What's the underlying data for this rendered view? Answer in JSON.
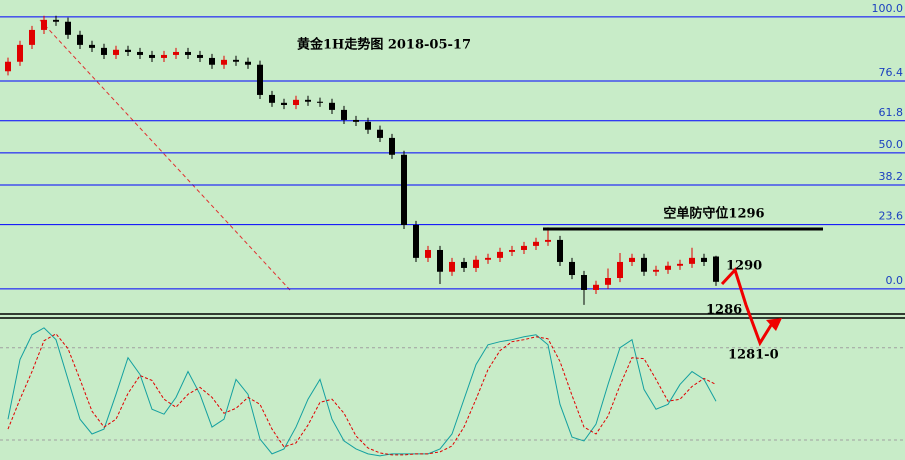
{
  "chart_data": [
    {
      "type": "candlestick",
      "title": "黄金1H走势图 2018-05-17",
      "ylim": [
        -8.5,
        106.2
      ],
      "yticks": [
        {
          "value": 100,
          "label": "100.0"
        },
        76.4,
        61.8,
        {
          "value": 50,
          "label": "50.0"
        },
        38.2,
        23.6,
        {
          "value": 0,
          "label": "0.0"
        }
      ],
      "grid": true,
      "grid_color": "#0000ff",
      "up_color": "#e00000",
      "down_color": "#000000",
      "open": [
        80.0,
        83.5,
        89.7,
        95.2,
        98.9,
        98.2,
        93.4,
        89.7,
        88.6,
        86.0,
        87.9,
        87.1,
        86.0,
        84.9,
        86.0,
        87.1,
        86.0,
        84.9,
        82.4,
        84.2,
        83.5,
        82.4,
        71.3,
        68.4,
        67.6,
        69.5,
        68.8,
        68.4,
        65.8,
        62.1,
        61.4,
        58.5,
        55.5,
        49.3,
        23.5,
        11.4,
        14.3,
        6.3,
        9.9,
        7.7,
        10.7,
        11.4,
        13.6,
        14.3,
        15.8,
        17.3,
        18.0,
        9.9,
        5.1,
        -0.4,
        1.5,
        4.0,
        9.9,
        11.4,
        6.3,
        7.0,
        8.5,
        9.2,
        11.4,
        11.9
      ],
      "high": [
        85.0,
        91.2,
        96.7,
        100.4,
        100.4,
        99.7,
        94.9,
        91.2,
        90.1,
        89.4,
        89.4,
        88.6,
        87.5,
        87.5,
        88.6,
        88.6,
        87.5,
        86.4,
        85.7,
        85.7,
        85.0,
        83.9,
        72.8,
        69.9,
        71.0,
        71.0,
        70.3,
        69.9,
        67.3,
        63.6,
        62.9,
        60.0,
        57.0,
        50.8,
        25.0,
        15.8,
        15.8,
        11.4,
        11.4,
        12.2,
        12.9,
        15.1,
        15.8,
        17.3,
        18.8,
        22.6,
        19.5,
        11.4,
        6.6,
        3.0,
        7.5,
        13.2,
        12.9,
        12.9,
        8.5,
        10.0,
        10.7,
        15.1,
        12.9,
        12.2
      ],
      "low": [
        78.5,
        82.0,
        88.2,
        93.7,
        96.7,
        91.9,
        88.2,
        87.1,
        84.5,
        84.5,
        85.6,
        84.5,
        83.4,
        83.4,
        84.5,
        84.5,
        83.4,
        80.9,
        80.9,
        82.0,
        80.9,
        69.8,
        66.9,
        66.1,
        66.1,
        67.3,
        66.9,
        64.3,
        60.6,
        59.9,
        57.0,
        54.0,
        47.8,
        22.0,
        9.9,
        9.9,
        1.8,
        4.8,
        6.2,
        6.2,
        9.2,
        9.9,
        12.1,
        12.8,
        14.3,
        15.8,
        8.4,
        3.6,
        -5.9,
        -1.9,
        0.0,
        2.5,
        8.4,
        4.8,
        4.8,
        5.5,
        7.0,
        7.7,
        8.4,
        1.1
      ],
      "close": [
        83.5,
        89.7,
        95.2,
        98.9,
        98.2,
        93.4,
        89.7,
        88.6,
        86.0,
        87.9,
        87.1,
        86.0,
        84.9,
        86.0,
        87.1,
        86.0,
        84.9,
        82.4,
        84.2,
        83.5,
        82.4,
        71.3,
        68.4,
        67.6,
        69.5,
        68.8,
        68.4,
        65.8,
        62.1,
        61.4,
        58.5,
        55.5,
        49.3,
        23.5,
        11.4,
        14.3,
        6.3,
        9.9,
        7.7,
        10.7,
        11.4,
        13.6,
        14.3,
        15.8,
        17.3,
        18.0,
        9.9,
        5.1,
        -0.4,
        1.5,
        4.0,
        9.9,
        11.4,
        6.3,
        7.0,
        8.5,
        9.2,
        11.4,
        9.9,
        2.6
      ],
      "annotations": [
        "空单防守位1296",
        "1290",
        "1286",
        "1281-0"
      ]
    },
    {
      "type": "line",
      "ylim": [
        7,
        98
      ],
      "levels": [
        20,
        80
      ],
      "series": [
        {
          "color": "#14a0a0",
          "dashed": false,
          "values": [
            33.5,
            72.3,
            88.4,
            92.9,
            85.2,
            59.4,
            33.5,
            23.9,
            27.1,
            49.7,
            73.5,
            62.6,
            40.0,
            36.8,
            47.7,
            64.5,
            49.7,
            28.4,
            33.5,
            59.4,
            49.7,
            20.6,
            11.0,
            14.2,
            28.4,
            46.5,
            59.4,
            33.5,
            19.4,
            14.2,
            11.0,
            9.7,
            11.0,
            11.0,
            11.0,
            11.0,
            14.2,
            23.9,
            46.5,
            69.0,
            81.9,
            83.9,
            85.2,
            87.1,
            88.4,
            81.9,
            43.2,
            21.9,
            19.4,
            30.3,
            56.1,
            80.0,
            85.2,
            52.9,
            40.0,
            43.2,
            56.1,
            64.5,
            59.4,
            45.2
          ]
        },
        {
          "color": "#e00000",
          "dashed": true,
          "values": [
            27.1,
            46.5,
            64.5,
            84.5,
            89.0,
            79.4,
            59.4,
            38.7,
            28.4,
            33.5,
            50.3,
            61.9,
            58.7,
            46.5,
            41.3,
            49.7,
            54.2,
            47.7,
            37.4,
            40.6,
            47.7,
            43.2,
            27.1,
            15.5,
            18.1,
            29.7,
            44.5,
            46.5,
            37.4,
            22.6,
            14.8,
            11.6,
            10.3,
            10.3,
            11.0,
            11.0,
            12.3,
            16.1,
            28.4,
            46.5,
            65.8,
            78.1,
            83.9,
            85.2,
            87.1,
            85.8,
            71.0,
            49.0,
            28.4,
            23.9,
            35.5,
            55.5,
            73.5,
            72.9,
            59.4,
            45.2,
            46.5,
            54.8,
            60.0,
            56.1
          ]
        }
      ]
    }
  ]
}
